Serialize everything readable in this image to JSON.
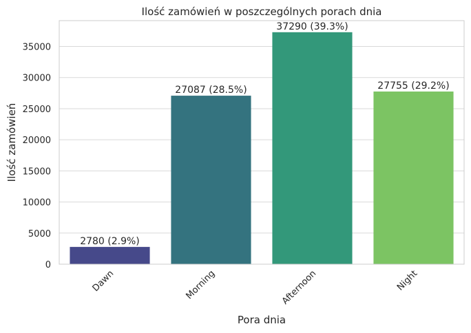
{
  "chart_data": {
    "type": "bar",
    "title": "Ilość zamówień w poszczególnych porach dnia",
    "xlabel": "Pora dnia",
    "ylabel": "Ilość zamówień",
    "categories": [
      "Dawn",
      "Morning",
      "Afternoon",
      "Night"
    ],
    "values": [
      2780,
      27087,
      37290,
      27755
    ],
    "bar_labels": [
      "2780 (2.9%)",
      "27087 (28.5%)",
      "37290 (39.3%)",
      "27755 (29.2%)"
    ],
    "colors": [
      "#46498a",
      "#34737f",
      "#33987a",
      "#7cc463"
    ],
    "ylim": [
      0,
      39150
    ],
    "yticks": [
      0,
      5000,
      10000,
      15000,
      20000,
      25000,
      30000,
      35000
    ],
    "grid": "horizontal",
    "xtick_rotation": "45 degrees"
  }
}
